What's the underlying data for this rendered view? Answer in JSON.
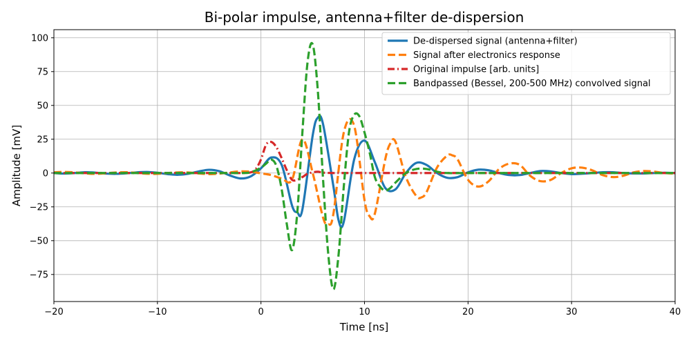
{
  "chart_data": {
    "type": "line",
    "title": "Bi-polar impulse, antenna+filter de-dispersion",
    "xlabel": "Time [ns]",
    "ylabel": "Amplitude [mV]",
    "xlim": [
      -20,
      40
    ],
    "ylim": [
      -95,
      106
    ],
    "xticks": [
      -20,
      -10,
      0,
      10,
      20,
      30,
      40
    ],
    "xtick_labels": [
      "−20",
      "−10",
      "0",
      "10",
      "20",
      "30",
      "40"
    ],
    "yticks": [
      -75,
      -50,
      -25,
      0,
      25,
      50,
      75,
      100
    ],
    "ytick_labels": [
      "−75",
      "−50",
      "−25",
      "0",
      "25",
      "50",
      "75",
      "100"
    ],
    "grid": true,
    "legend_position": "top-right",
    "series": [
      {
        "name": "De-dispersed signal (antenna+filter)",
        "color": "#1f77b4",
        "dash": "solid",
        "x": [
          -20,
          -19,
          -18,
          -17,
          -16,
          -15,
          -14,
          -13,
          -12,
          -11,
          -10,
          -9,
          -8,
          -7,
          -6,
          -5,
          -4,
          -3,
          -2,
          -1,
          0,
          1,
          2,
          3,
          3.5,
          4,
          5,
          5.5,
          6,
          7,
          7.5,
          8,
          9,
          10,
          11,
          12,
          13,
          14,
          15,
          16,
          17,
          18,
          19,
          20,
          21,
          22,
          23,
          24,
          25,
          26,
          27,
          28,
          29,
          30,
          31,
          32,
          33,
          34,
          35,
          36,
          37,
          38,
          39,
          40
        ],
        "y": [
          0,
          -0.4,
          0,
          0.6,
          0.3,
          -0.4,
          -0.6,
          -0.2,
          0.5,
          0.8,
          0.2,
          -0.8,
          -1.3,
          -0.5,
          1.2,
          2.4,
          1.3,
          -1.8,
          -4.0,
          -2.5,
          3.5,
          11.5,
          6,
          -24,
          -29,
          -27,
          28,
          41,
          36,
          -10,
          -35,
          -36,
          10,
          24,
          8,
          -11,
          -12,
          0,
          7.5,
          6,
          0,
          -3.5,
          -3,
          0.5,
          2.5,
          2,
          0,
          -1.5,
          -1.5,
          0,
          1.5,
          1.2,
          0,
          -0.8,
          -0.5,
          0,
          0.6,
          0.6,
          0,
          -0.3,
          -0.3,
          0,
          0.2,
          0
        ]
      },
      {
        "name": "Signal after electronics response",
        "color": "#ff7f0e",
        "dash": "dashed",
        "x": [
          -20,
          -19,
          -18,
          -17,
          -16,
          -15,
          -14,
          -13,
          -12,
          -11,
          -10,
          -9,
          -8,
          -7,
          -6,
          -5,
          -4,
          -3,
          -2,
          -1,
          0,
          1,
          2,
          3,
          4,
          5,
          6,
          6.5,
          7,
          8,
          9,
          10,
          10.5,
          11,
          12,
          12.5,
          13,
          14,
          15,
          15.5,
          16,
          17,
          18,
          18.5,
          19,
          20,
          21,
          22,
          23,
          24,
          25,
          26,
          27,
          28,
          29,
          30,
          31,
          32,
          33,
          34,
          35,
          36,
          37,
          38,
          39,
          40
        ],
        "y": [
          0.5,
          0.8,
          0.5,
          -0.2,
          -0.6,
          -0.2,
          0.4,
          0.6,
          0.1,
          -0.5,
          -0.6,
          0,
          0.5,
          0.4,
          -0.3,
          -0.8,
          -0.4,
          0.5,
          1.2,
          1.0,
          -0.2,
          -1.5,
          -4,
          -5,
          25,
          0,
          -33,
          -38,
          -30,
          30,
          35,
          -20,
          -32,
          -30,
          10,
          22,
          23,
          -3,
          -17,
          -18,
          -14,
          4,
          13,
          13,
          10,
          -5,
          -10,
          -6,
          3,
          7,
          6,
          -2,
          -6,
          -5,
          0,
          3.5,
          4,
          2,
          -1.5,
          -3,
          -2,
          0.5,
          1.5,
          1,
          0,
          -0.5
        ]
      },
      {
        "name": "Original impulse [arb. units]",
        "color": "#d62728",
        "dash": "dashdot",
        "x": [
          -20,
          -10,
          -5,
          -2,
          -1,
          -0.5,
          0,
          0.5,
          1,
          1.5,
          2,
          2.5,
          3,
          3.5,
          4,
          4.5,
          5,
          5.5,
          6,
          7,
          8,
          10,
          20,
          30,
          40
        ],
        "y": [
          0,
          0,
          0,
          0,
          0.5,
          3,
          10,
          21,
          23,
          19,
          11,
          2,
          -5,
          -5,
          -3,
          -0.5,
          0.5,
          1,
          0.3,
          0,
          0,
          0,
          0,
          0,
          0
        ]
      },
      {
        "name": "Bandpassed (Bessel, 200-500 MHz) convolved signal",
        "color": "#2ca02c",
        "dash": "dashed",
        "x": [
          -20,
          -15,
          -10,
          -5,
          -3,
          -2,
          -1,
          0,
          0.5,
          1,
          1.5,
          2,
          2.5,
          3,
          3.5,
          4,
          4.5,
          5,
          5.5,
          6,
          6.5,
          7,
          7.5,
          8,
          8.5,
          9,
          9.5,
          10,
          10.5,
          11,
          11.5,
          12,
          12.5,
          13,
          14,
          15,
          16,
          17,
          18,
          20,
          25,
          30,
          35,
          40
        ],
        "y": [
          0,
          0,
          0,
          0,
          0,
          0,
          0.5,
          4,
          7,
          10,
          5,
          -12,
          -38,
          -57,
          -30,
          30,
          82,
          95,
          60,
          -5,
          -60,
          -86,
          -60,
          -10,
          30,
          43,
          42,
          30,
          15,
          -3,
          -10,
          -13,
          -11,
          -7,
          0,
          3,
          3,
          1,
          0,
          0,
          0,
          0,
          0,
          0
        ]
      }
    ]
  }
}
